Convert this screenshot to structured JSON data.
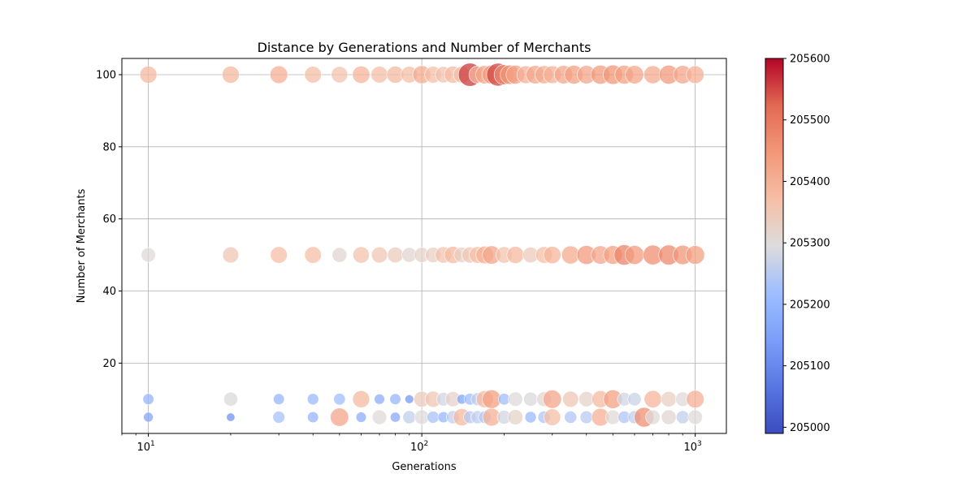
{
  "chart_data": {
    "type": "scatter",
    "title": "Distance by Generations and Number of Merchants",
    "xlabel": "Generations",
    "ylabel": "Number of Merchants",
    "xscale": "log",
    "xlim": [
      8,
      1300
    ],
    "ylim": [
      0.5,
      104.5
    ],
    "grid": true,
    "x_ticks": [
      {
        "value": 10,
        "base": "10",
        "exp": "1"
      },
      {
        "value": 100,
        "base": "10",
        "exp": "2"
      },
      {
        "value": 1000,
        "base": "10",
        "exp": "3"
      }
    ],
    "y_ticks": [
      20,
      40,
      60,
      80,
      100
    ],
    "color_scale": {
      "colormap": "coolwarm",
      "min": 204990,
      "max": 205600,
      "ticks": [
        "205000",
        "205100",
        "205200",
        "205300",
        "205400",
        "205500",
        "205600"
      ],
      "tick_values": [
        205000,
        205100,
        205200,
        205300,
        205400,
        205500,
        205600
      ]
    },
    "series": [
      {
        "merchants": 100,
        "points": [
          [
            10,
            205380
          ],
          [
            20,
            205380
          ],
          [
            30,
            205400
          ],
          [
            40,
            205370
          ],
          [
            50,
            205360
          ],
          [
            60,
            205390
          ],
          [
            70,
            205370
          ],
          [
            80,
            205380
          ],
          [
            90,
            205370
          ],
          [
            100,
            205410
          ],
          [
            110,
            205370
          ],
          [
            120,
            205360
          ],
          [
            130,
            205380
          ],
          [
            140,
            205370
          ],
          [
            150,
            205560
          ],
          [
            160,
            205390
          ],
          [
            170,
            205420
          ],
          [
            180,
            205440
          ],
          [
            190,
            205550
          ],
          [
            200,
            205470
          ],
          [
            210,
            205450
          ],
          [
            220,
            205430
          ],
          [
            240,
            205400
          ],
          [
            260,
            205420
          ],
          [
            280,
            205410
          ],
          [
            300,
            205400
          ],
          [
            330,
            205420
          ],
          [
            360,
            205430
          ],
          [
            400,
            205420
          ],
          [
            450,
            205440
          ],
          [
            500,
            205450
          ],
          [
            550,
            205430
          ],
          [
            600,
            205420
          ],
          [
            700,
            205410
          ],
          [
            800,
            205440
          ],
          [
            900,
            205420
          ],
          [
            1000,
            205400
          ]
        ]
      },
      {
        "merchants": 50,
        "points": [
          [
            10,
            205300
          ],
          [
            20,
            205350
          ],
          [
            30,
            205370
          ],
          [
            40,
            205370
          ],
          [
            50,
            205310
          ],
          [
            60,
            205360
          ],
          [
            70,
            205350
          ],
          [
            80,
            205340
          ],
          [
            90,
            205310
          ],
          [
            100,
            205320
          ],
          [
            110,
            205330
          ],
          [
            120,
            205360
          ],
          [
            130,
            205380
          ],
          [
            140,
            205330
          ],
          [
            150,
            205350
          ],
          [
            160,
            205370
          ],
          [
            170,
            205400
          ],
          [
            180,
            205420
          ],
          [
            200,
            205360
          ],
          [
            220,
            205380
          ],
          [
            250,
            205340
          ],
          [
            280,
            205370
          ],
          [
            300,
            205390
          ],
          [
            350,
            205410
          ],
          [
            400,
            205440
          ],
          [
            450,
            205420
          ],
          [
            500,
            205430
          ],
          [
            550,
            205480
          ],
          [
            600,
            205440
          ],
          [
            700,
            205460
          ],
          [
            800,
            205470
          ],
          [
            900,
            205450
          ],
          [
            1000,
            205430
          ]
        ]
      },
      {
        "merchants": 10,
        "points": [
          [
            10,
            205200
          ],
          [
            20,
            205290
          ],
          [
            30,
            205200
          ],
          [
            40,
            205210
          ],
          [
            50,
            205220
          ],
          [
            60,
            205380
          ],
          [
            70,
            205180
          ],
          [
            80,
            205200
          ],
          [
            90,
            205130
          ],
          [
            100,
            205340
          ],
          [
            110,
            205350
          ],
          [
            120,
            205280
          ],
          [
            130,
            205320
          ],
          [
            140,
            205160
          ],
          [
            150,
            205220
          ],
          [
            160,
            205260
          ],
          [
            170,
            205380
          ],
          [
            180,
            205430
          ],
          [
            200,
            205220
          ],
          [
            220,
            205300
          ],
          [
            250,
            205290
          ],
          [
            280,
            205310
          ],
          [
            300,
            205420
          ],
          [
            350,
            205350
          ],
          [
            400,
            205320
          ],
          [
            450,
            205380
          ],
          [
            500,
            205430
          ],
          [
            550,
            205280
          ],
          [
            600,
            205270
          ],
          [
            700,
            205390
          ],
          [
            800,
            205330
          ],
          [
            900,
            205300
          ],
          [
            1000,
            205400
          ]
        ]
      },
      {
        "merchants": 5,
        "points": [
          [
            10,
            205160
          ],
          [
            20,
            205120
          ],
          [
            30,
            205230
          ],
          [
            40,
            205200
          ],
          [
            50,
            205420
          ],
          [
            60,
            205180
          ],
          [
            70,
            205300
          ],
          [
            80,
            205170
          ],
          [
            90,
            205260
          ],
          [
            100,
            205300
          ],
          [
            110,
            205230
          ],
          [
            120,
            205200
          ],
          [
            130,
            205260
          ],
          [
            140,
            205380
          ],
          [
            150,
            205250
          ],
          [
            160,
            205260
          ],
          [
            170,
            205250
          ],
          [
            180,
            205400
          ],
          [
            200,
            205280
          ],
          [
            220,
            205320
          ],
          [
            250,
            205210
          ],
          [
            280,
            205240
          ],
          [
            300,
            205370
          ],
          [
            350,
            205240
          ],
          [
            400,
            205250
          ],
          [
            450,
            205400
          ],
          [
            500,
            205300
          ],
          [
            550,
            205240
          ],
          [
            600,
            205260
          ],
          [
            650,
            205460
          ],
          [
            700,
            205300
          ],
          [
            800,
            205310
          ],
          [
            900,
            205260
          ],
          [
            1000,
            205300
          ]
        ]
      }
    ]
  }
}
